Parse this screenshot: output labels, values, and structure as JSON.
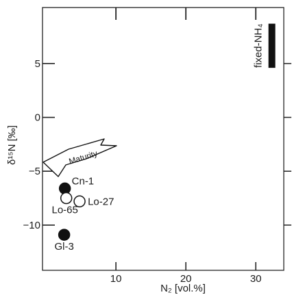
{
  "chart_data": {
    "type": "scatter",
    "xlabel": "N₂ [vol.%]",
    "ylabel": "δ¹⁵N [‰]",
    "xlim": [
      -0.5,
      34
    ],
    "ylim": [
      -14.2,
      10.2
    ],
    "x_ticks": [
      10,
      20,
      30
    ],
    "x_tick_labels": [
      "10",
      "20",
      "30"
    ],
    "y_ticks": [
      5,
      0,
      -5,
      -10
    ],
    "y_tick_labels": [
      "5",
      "0",
      "−5",
      "−10"
    ],
    "y_minor_ticks": [
      5,
      0,
      -5,
      -10
    ],
    "grid": false,
    "series": [
      {
        "marker": "filled",
        "points": [
          {
            "label": "Cn-1",
            "x": 2.7,
            "y": -6.6
          },
          {
            "label": "Gl-3",
            "x": 2.6,
            "y": -10.9
          }
        ]
      },
      {
        "marker": "open",
        "points": [
          {
            "label": "Lo-65",
            "x": 2.9,
            "y": -7.5
          },
          {
            "label": "Lo-27",
            "x": 4.8,
            "y": -7.8
          }
        ]
      }
    ],
    "fixed_nh4": {
      "label": "fixed-NH₄",
      "x": 32.3,
      "y_range": [
        4.6,
        8.7
      ]
    },
    "annotation": {
      "text": "Maturity"
    },
    "colors": {
      "filled_marker": "#111111",
      "open_marker": "#ffffff",
      "axis": "#222222"
    }
  }
}
